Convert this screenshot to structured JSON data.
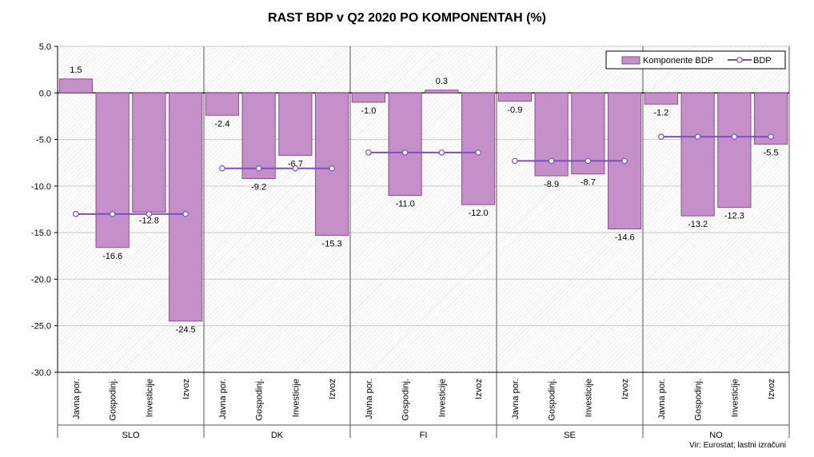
{
  "chart_data": {
    "type": "bar",
    "title": "RAST BDP v Q2 2020 PO KOMPONENTAH (%)",
    "source": "Vir: Eurostat; lastni izračuni",
    "ylim": [
      -30,
      5
    ],
    "yticks": [
      "5.0",
      "0.0",
      "-5.0",
      "-10.0",
      "-15.0",
      "-20.0",
      "-25.0",
      "-30.0"
    ],
    "ytick_values": [
      5,
      0,
      -5,
      -10,
      -15,
      -20,
      -25,
      -30
    ],
    "components": [
      "Javna por.",
      "Gospodinj.",
      "Investicije",
      "Izvoz"
    ],
    "legend": {
      "bar": "Komponente BDP",
      "line": "BDP",
      "placement": "top-right"
    },
    "colors": {
      "bar_fill": "#c58fc9",
      "bar_stroke": "#8a4d8e",
      "line": "#7b4fbf",
      "marker_fill": "#ffffff",
      "grid": "#c8c8c8"
    },
    "groups": [
      {
        "name": "SLO",
        "values": [
          1.5,
          -16.6,
          -12.8,
          -24.5
        ],
        "labels": [
          "1.5",
          "-16.6",
          "-12.8",
          "-24.5"
        ],
        "gdp": -13.0
      },
      {
        "name": "DK",
        "values": [
          -2.4,
          -9.2,
          -6.7,
          -15.3
        ],
        "labels": [
          "-2.4",
          "-9.2",
          "-6.7",
          "-15.3"
        ],
        "gdp": -8.1
      },
      {
        "name": "FI",
        "values": [
          -1.0,
          -11.0,
          0.3,
          -12.0
        ],
        "labels": [
          "-1.0",
          "-11.0",
          "0.3",
          "-12.0"
        ],
        "gdp": -6.4
      },
      {
        "name": "SE",
        "values": [
          -0.9,
          -8.9,
          -8.7,
          -14.6
        ],
        "labels": [
          "-0.9",
          "-8.9",
          "-8.7",
          "-14.6"
        ],
        "gdp": -7.3
      },
      {
        "name": "NO",
        "values": [
          -1.2,
          -13.2,
          -12.3,
          -5.5
        ],
        "labels": [
          "-1.2",
          "-13.2",
          "-12.3",
          "-5.5"
        ],
        "gdp": -4.7
      }
    ]
  }
}
